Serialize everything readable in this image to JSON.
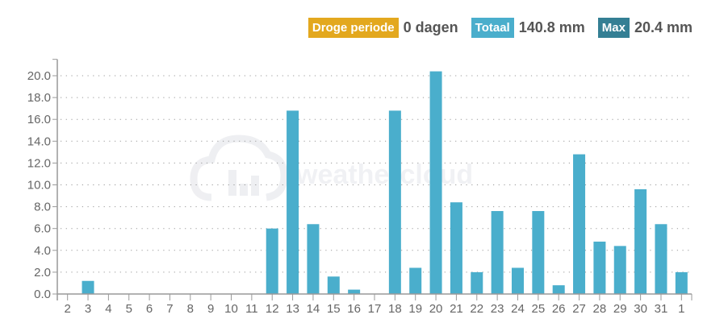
{
  "stats": {
    "dry_label": "Droge periode",
    "dry_value": "0 dagen",
    "total_label": "Totaal",
    "total_value": "140.8 mm",
    "max_label": "Max",
    "max_value": "20.4 mm"
  },
  "colors": {
    "dry": "#e3a81e",
    "total": "#4aaecc",
    "max": "#347f94",
    "bar": "#4aaecc"
  },
  "watermark": "weathercloud",
  "chart_data": {
    "type": "bar",
    "categories": [
      "2",
      "3",
      "4",
      "5",
      "6",
      "7",
      "8",
      "9",
      "10",
      "11",
      "12",
      "13",
      "14",
      "15",
      "16",
      "17",
      "18",
      "19",
      "20",
      "21",
      "22",
      "23",
      "24",
      "25",
      "26",
      "27",
      "28",
      "29",
      "30",
      "31",
      "1"
    ],
    "values": [
      0,
      1.2,
      0,
      0,
      0,
      0,
      0,
      0,
      0,
      0,
      6.0,
      16.8,
      6.4,
      1.6,
      0.4,
      0,
      16.8,
      2.4,
      20.4,
      8.4,
      2.0,
      7.6,
      2.4,
      7.6,
      0.8,
      12.8,
      4.8,
      4.4,
      9.6,
      6.4,
      2.0
    ],
    "yticks": [
      "0.0",
      "2.0",
      "4.0",
      "6.0",
      "8.0",
      "10.0",
      "12.0",
      "14.0",
      "16.0",
      "18.0",
      "20.0"
    ],
    "ylim": [
      0,
      21.5
    ],
    "grid": true,
    "xlabel": "",
    "ylabel": "",
    "title": ""
  }
}
